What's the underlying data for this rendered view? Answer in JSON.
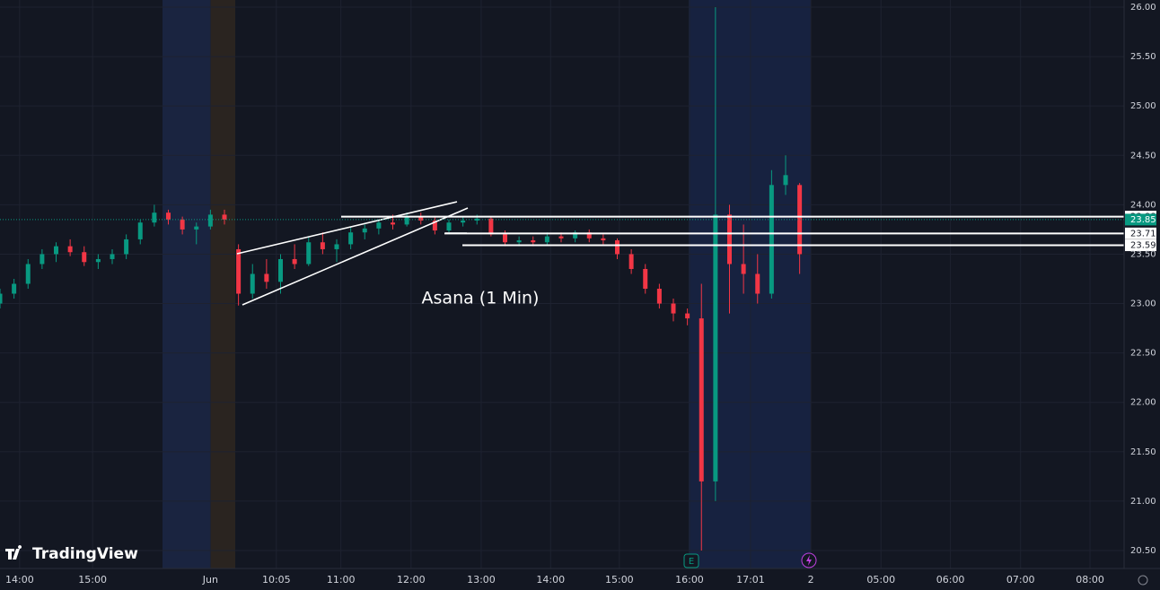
{
  "chart_data": {
    "type": "candlestick",
    "title": "Asana (1 Min)",
    "brand": "TradingView",
    "up_color": "#089981",
    "down_color": "#f23645",
    "grid": true,
    "xlim": [
      0,
      160
    ],
    "ylim": [
      20.5,
      26
    ],
    "yticks": [
      {
        "value": 20.5,
        "label": "20.50"
      },
      {
        "value": 21,
        "label": "21.00"
      },
      {
        "value": 21.5,
        "label": "21.50"
      },
      {
        "value": 22,
        "label": "22.00"
      },
      {
        "value": 22.5,
        "label": "22.50"
      },
      {
        "value": 23,
        "label": "23.00"
      },
      {
        "value": 23.5,
        "label": "23.50"
      },
      {
        "value": 24,
        "label": "24.00"
      },
      {
        "value": 24.5,
        "label": "24.50"
      },
      {
        "value": 25,
        "label": "25.00"
      },
      {
        "value": 25.5,
        "label": "25.50"
      },
      {
        "value": 26,
        "label": "26.00"
      }
    ],
    "xticks": [
      {
        "value": 2.8,
        "label": "14:00"
      },
      {
        "value": 13.2,
        "label": "15:00"
      },
      {
        "value": 30,
        "label": "Jun"
      },
      {
        "value": 39.4,
        "label": "10:05"
      },
      {
        "value": 48.6,
        "label": "11:00"
      },
      {
        "value": 58.6,
        "label": "12:00"
      },
      {
        "value": 68.6,
        "label": "13:00"
      },
      {
        "value": 78.5,
        "label": "14:00"
      },
      {
        "value": 88.3,
        "label": "15:00"
      },
      {
        "value": 98.3,
        "label": "16:00"
      },
      {
        "value": 107,
        "label": "17:01"
      },
      {
        "value": 115.6,
        "label": "2"
      },
      {
        "value": 125.6,
        "label": "05:00"
      },
      {
        "value": 135.5,
        "label": "06:00"
      },
      {
        "value": 145.5,
        "label": "07:00"
      },
      {
        "value": 155.4,
        "label": "08:00"
      }
    ],
    "levels": [
      23.88,
      23.71,
      23.59
    ],
    "last_price": 23.85,
    "x": [
      0,
      2,
      4,
      6,
      8,
      10,
      12,
      14,
      16,
      18,
      20,
      22,
      24,
      26,
      28,
      30,
      32,
      34,
      36,
      38,
      40,
      42,
      44,
      46,
      48,
      50,
      52,
      54,
      56,
      58,
      60,
      62,
      64,
      66,
      68,
      70,
      72,
      74,
      76,
      78,
      80,
      82,
      84,
      86,
      88,
      90,
      92,
      94,
      96,
      98,
      100,
      102,
      104,
      106,
      108,
      110,
      112,
      114
    ],
    "candles": [
      [
        23.0,
        23.15,
        22.95,
        23.1
      ],
      [
        23.1,
        23.25,
        23.05,
        23.2
      ],
      [
        23.2,
        23.45,
        23.15,
        23.4
      ],
      [
        23.4,
        23.55,
        23.35,
        23.5
      ],
      [
        23.5,
        23.62,
        23.42,
        23.58
      ],
      [
        23.58,
        23.65,
        23.48,
        23.52
      ],
      [
        23.52,
        23.58,
        23.38,
        23.42
      ],
      [
        23.42,
        23.5,
        23.35,
        23.45
      ],
      [
        23.45,
        23.55,
        23.4,
        23.5
      ],
      [
        23.5,
        23.7,
        23.45,
        23.65
      ],
      [
        23.65,
        23.85,
        23.6,
        23.82
      ],
      [
        23.82,
        24.0,
        23.78,
        23.92
      ],
      [
        23.92,
        23.95,
        23.8,
        23.85
      ],
      [
        23.85,
        23.88,
        23.7,
        23.75
      ],
      [
        23.75,
        23.82,
        23.6,
        23.78
      ],
      [
        23.78,
        23.95,
        23.75,
        23.9
      ],
      [
        23.9,
        23.95,
        23.8,
        23.85
      ],
      [
        23.55,
        23.6,
        22.98,
        23.1
      ],
      [
        23.1,
        23.4,
        23.05,
        23.3
      ],
      [
        23.3,
        23.45,
        23.15,
        23.22
      ],
      [
        23.22,
        23.5,
        23.1,
        23.45
      ],
      [
        23.45,
        23.6,
        23.35,
        23.4
      ],
      [
        23.4,
        23.68,
        23.38,
        23.62
      ],
      [
        23.62,
        23.72,
        23.5,
        23.55
      ],
      [
        23.55,
        23.65,
        23.42,
        23.6
      ],
      [
        23.6,
        23.78,
        23.55,
        23.72
      ],
      [
        23.72,
        23.8,
        23.65,
        23.76
      ],
      [
        23.76,
        23.85,
        23.7,
        23.82
      ],
      [
        23.82,
        23.9,
        23.75,
        23.8
      ],
      [
        23.8,
        23.92,
        23.78,
        23.88
      ],
      [
        23.88,
        23.92,
        23.8,
        23.84
      ],
      [
        23.84,
        23.88,
        23.7,
        23.74
      ],
      [
        23.74,
        23.85,
        23.72,
        23.82
      ],
      [
        23.82,
        23.88,
        23.78,
        23.84
      ],
      [
        23.84,
        23.9,
        23.8,
        23.86
      ],
      [
        23.86,
        23.88,
        23.68,
        23.7
      ],
      [
        23.7,
        23.74,
        23.58,
        23.62
      ],
      [
        23.62,
        23.68,
        23.58,
        23.64
      ],
      [
        23.64,
        23.68,
        23.58,
        23.62
      ],
      [
        23.62,
        23.72,
        23.6,
        23.68
      ],
      [
        23.68,
        23.72,
        23.62,
        23.66
      ],
      [
        23.66,
        23.74,
        23.62,
        23.72
      ],
      [
        23.72,
        23.75,
        23.62,
        23.66
      ],
      [
        23.66,
        23.7,
        23.6,
        23.64
      ],
      [
        23.64,
        23.66,
        23.45,
        23.5
      ],
      [
        23.5,
        23.55,
        23.3,
        23.35
      ],
      [
        23.35,
        23.4,
        23.1,
        23.15
      ],
      [
        23.15,
        23.2,
        22.95,
        23.0
      ],
      [
        23.0,
        23.05,
        22.82,
        22.9
      ],
      [
        22.9,
        22.95,
        22.78,
        22.85
      ],
      [
        22.85,
        23.2,
        20.5,
        21.2
      ],
      [
        21.2,
        26.0,
        21.0,
        23.9
      ],
      [
        23.9,
        24.0,
        22.9,
        23.4
      ],
      [
        23.4,
        23.8,
        23.1,
        23.3
      ],
      [
        23.3,
        23.5,
        23.0,
        23.1
      ],
      [
        23.1,
        24.35,
        23.05,
        24.2
      ],
      [
        24.2,
        24.5,
        24.1,
        24.3
      ],
      [
        24.2,
        24.22,
        23.3,
        23.5
      ]
    ]
  }
}
